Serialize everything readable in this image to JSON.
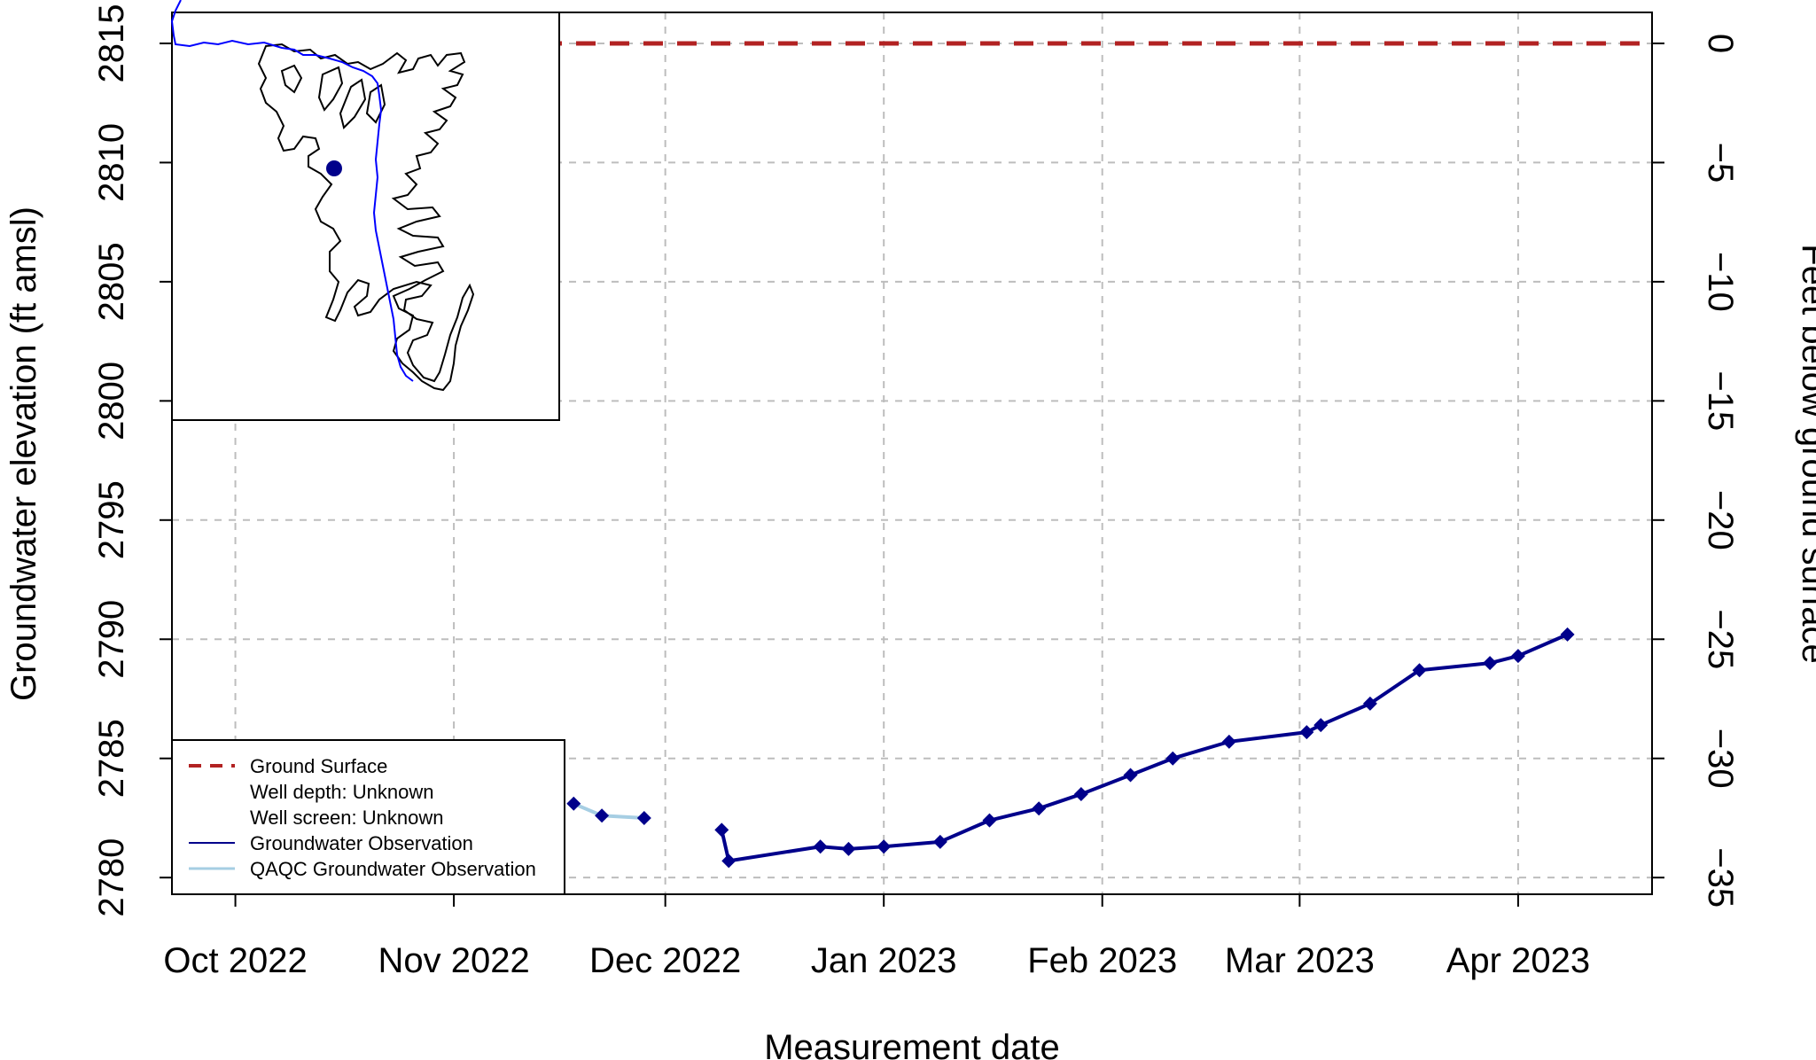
{
  "chart_data": {
    "type": "line",
    "xlabel": "Measurement date",
    "ylabel": "Groundwater elevation (ft amsl)",
    "ylabel_right": "Feet below ground surface",
    "x_range": [
      "2022-09-22",
      "2023-04-20"
    ],
    "ylim": [
      2779.3,
      2816.3
    ],
    "x_ticks": [
      {
        "date": "2022-10-01",
        "label": "Oct 2022"
      },
      {
        "date": "2022-11-01",
        "label": "Nov 2022"
      },
      {
        "date": "2022-12-01",
        "label": "Dec 2022"
      },
      {
        "date": "2023-01-01",
        "label": "Jan 2023"
      },
      {
        "date": "2023-02-01",
        "label": "Feb 2023"
      },
      {
        "date": "2023-03-01",
        "label": "Mar 2023"
      },
      {
        "date": "2023-04-01",
        "label": "Apr 2023"
      }
    ],
    "y_ticks_left": [
      "2780",
      "2785",
      "2790",
      "2795",
      "2800",
      "2805",
      "2810",
      "2815"
    ],
    "y_ticks_right": [
      {
        "value": 2815,
        "label": "0"
      },
      {
        "value": 2810,
        "label": "−5"
      },
      {
        "value": 2805,
        "label": "−10"
      },
      {
        "value": 2800,
        "label": "−15"
      },
      {
        "value": 2795,
        "label": "−20"
      },
      {
        "value": 2790,
        "label": "−25"
      },
      {
        "value": 2785,
        "label": "−30"
      },
      {
        "value": 2780,
        "label": "−35"
      }
    ],
    "grid": true,
    "ground_surface": 2815,
    "series": [
      {
        "name": "QAQC Groundwater Observation",
        "color": "#a6cee3",
        "points": [
          {
            "x": "2022-11-18",
            "y": 2783.1
          },
          {
            "x": "2022-11-22",
            "y": 2782.6
          },
          {
            "x": "2022-11-28",
            "y": 2782.5
          }
        ]
      },
      {
        "name": "Groundwater Observation",
        "color": "#00008b",
        "points": [
          {
            "x": "2022-12-09",
            "y": 2782.0
          },
          {
            "x": "2022-12-10",
            "y": 2780.7
          },
          {
            "x": "2022-12-23",
            "y": 2781.3
          },
          {
            "x": "2022-12-27",
            "y": 2781.2
          },
          {
            "x": "2023-01-01",
            "y": 2781.3
          },
          {
            "x": "2023-01-09",
            "y": 2781.5
          },
          {
            "x": "2023-01-16",
            "y": 2782.4
          },
          {
            "x": "2023-01-23",
            "y": 2782.9
          },
          {
            "x": "2023-01-29",
            "y": 2783.5
          },
          {
            "x": "2023-02-05",
            "y": 2784.3
          },
          {
            "x": "2023-02-11",
            "y": 2785.0
          },
          {
            "x": "2023-02-19",
            "y": 2785.7
          },
          {
            "x": "2023-03-02",
            "y": 2786.1
          },
          {
            "x": "2023-03-04",
            "y": 2786.4
          },
          {
            "x": "2023-03-11",
            "y": 2787.3
          },
          {
            "x": "2023-03-18",
            "y": 2788.7
          },
          {
            "x": "2023-03-28",
            "y": 2789.0
          },
          {
            "x": "2023-04-01",
            "y": 2789.3
          },
          {
            "x": "2023-04-08",
            "y": 2790.2
          }
        ]
      }
    ],
    "legend": {
      "placement": "bottom-left",
      "entries": [
        {
          "label": "Ground Surface",
          "symbol": "dashed",
          "color": "#b22222"
        },
        {
          "label": "Well depth: Unknown",
          "symbol": "none"
        },
        {
          "label": "Well screen: Unknown",
          "symbol": "none"
        },
        {
          "label": "Groundwater Observation",
          "symbol": "line",
          "color": "#00008b"
        },
        {
          "label": "QAQC Groundwater Observation",
          "symbol": "line",
          "color": "#a6cee3"
        }
      ]
    },
    "inset_map": {
      "placement": "top-left",
      "river_color": "#0000ff",
      "well_marker_color": "#00008b"
    }
  }
}
